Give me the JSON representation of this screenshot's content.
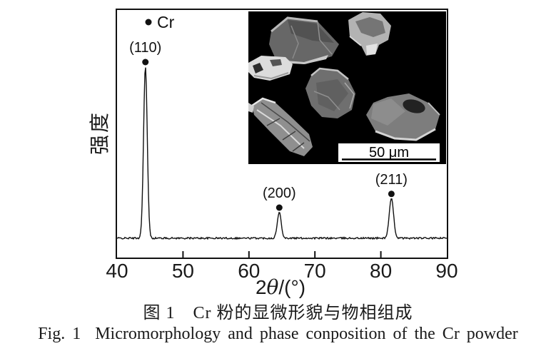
{
  "figure": {
    "caption_line1": "图 1　Cr 粉的显微形貌与物相组成",
    "caption_line2": "Fig. 1  Micromorphology and phase conposition of the Cr powder"
  },
  "chart_data": {
    "type": "line",
    "description": "XRD pattern of Cr powder with SEM inset",
    "title": "",
    "xlabel": "2θ/(°)",
    "xlabel_parts": {
      "prefix": "2",
      "theta": "θ",
      "suffix": "/(°)"
    },
    "ylabel": "强度",
    "xlim": [
      40,
      90
    ],
    "x_ticks": [
      "40",
      "50",
      "60",
      "70",
      "80",
      "90"
    ],
    "ylim": [
      0,
      115
    ],
    "grid": false,
    "legend_marker_label": "Cr",
    "series": [
      {
        "name": "Cr powder diffraction intensity",
        "baseline_rel_intensity": 0,
        "noise_amplitude_rel": 1.0,
        "peaks": [
          {
            "two_theta": 44.3,
            "hkl": "(110)",
            "rel_intensity": 100,
            "sigma_deg": 0.28
          },
          {
            "two_theta": 64.6,
            "hkl": "(200)",
            "rel_intensity": 15,
            "sigma_deg": 0.3
          },
          {
            "two_theta": 81.6,
            "hkl": "(211)",
            "rel_intensity": 23,
            "sigma_deg": 0.33
          }
        ]
      }
    ],
    "colors": {
      "trace": "#111111",
      "marker": "#111111",
      "axis": "#111111"
    }
  },
  "inset": {
    "type": "SEM micrograph of Cr powder particles",
    "particle_count": 6,
    "scale_bar_label": "50 μm",
    "background": "#000000"
  }
}
